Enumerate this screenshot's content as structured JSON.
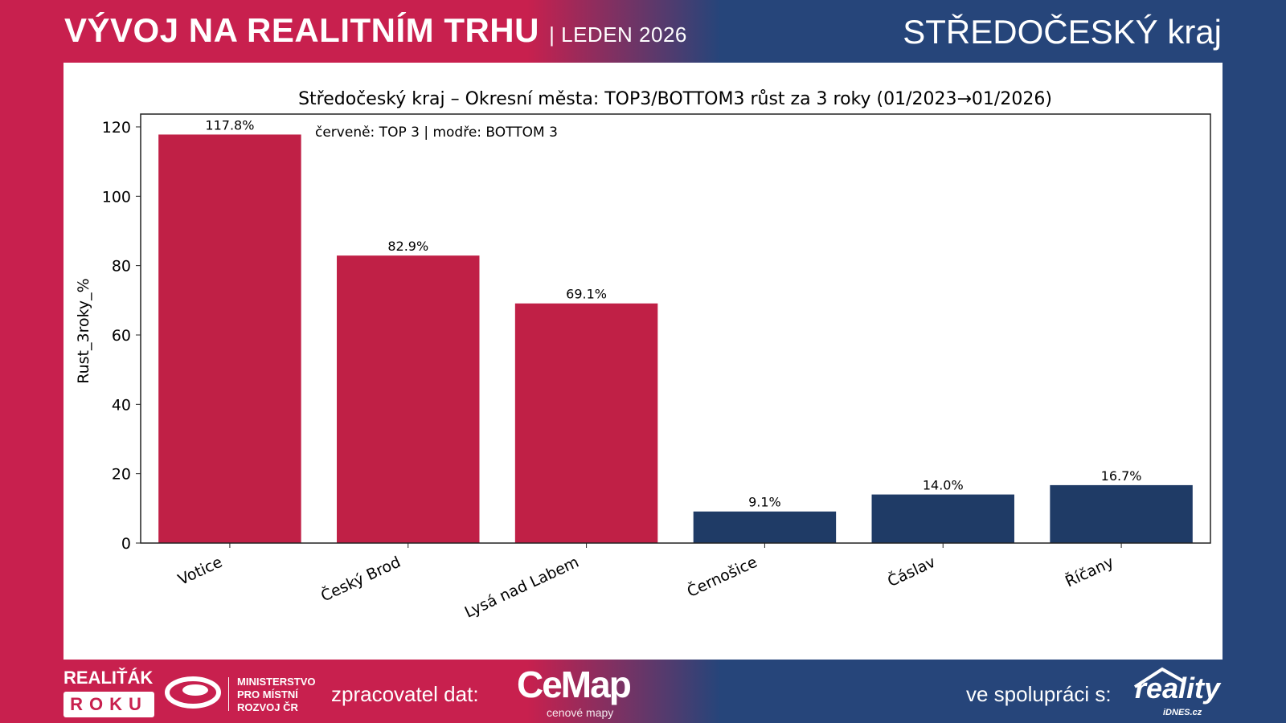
{
  "header": {
    "title": "VÝVOJ NA REALITNÍM TRHU",
    "subtitle": "| LEDEN 2026",
    "region": "STŘEDOČESKÝ kraj"
  },
  "footer": {
    "logo_realitak": "REALIŤÁK",
    "logo_roku": "ROKU",
    "ministry": [
      "MINISTERSTVO",
      "PRO MÍSTNÍ",
      "ROZVOJ ČR"
    ],
    "processor_label": "zpracovatel dat:",
    "cemap_logo": "CeMap",
    "cemap_sub": "cenové mapy",
    "coop_label": "ve spolupráci s:",
    "reality_logo": "reality",
    "idnes_logo": "iDNES.cz"
  },
  "colors": {
    "top": "#c02046",
    "bottom": "#1f3b66",
    "bg_red": "#c8204e",
    "bg_blue": "#26457a"
  },
  "chart_data": {
    "type": "bar",
    "title": "Středočeský kraj – Okresní města: TOP3/BOTTOM3 růst za 3 roky (01/2023→01/2026)",
    "annotation": "červeně: TOP 3 | modře: BOTTOM 3",
    "xlabel": "",
    "ylabel": "Rust_3roky_%",
    "ylim": [
      0,
      123.7
    ],
    "yticks": [
      0,
      20,
      40,
      60,
      80,
      100,
      120
    ],
    "categories": [
      "Votice",
      "Český Brod",
      "Lysá nad Labem",
      "Černošice",
      "Čáslav",
      "Říčany"
    ],
    "values": [
      117.8,
      82.9,
      69.1,
      9.1,
      14.0,
      16.7
    ],
    "labels": [
      "117.8%",
      "82.9%",
      "69.1%",
      "9.1%",
      "14.0%",
      "16.7%"
    ],
    "groups": [
      "top",
      "top",
      "top",
      "bottom",
      "bottom",
      "bottom"
    ],
    "grid": false,
    "legend": "none"
  }
}
